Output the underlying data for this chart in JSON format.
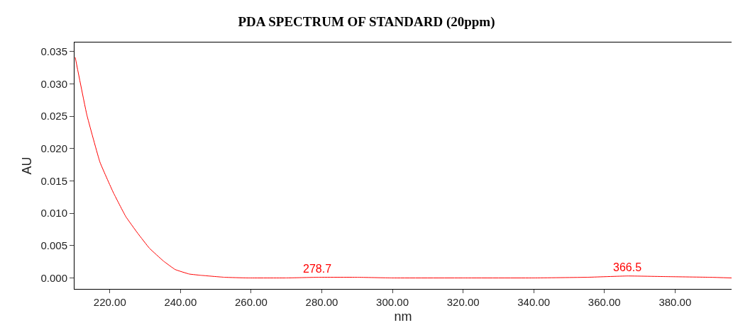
{
  "chart_data": {
    "type": "line",
    "title": "PDA SPECTRUM OF STANDARD (20ppm)",
    "xlabel": "nm",
    "ylabel": "AU",
    "x": [
      210.2,
      213.5,
      217.2,
      220.9,
      224.5,
      227.9,
      231.2,
      235.2,
      238.5,
      242.5,
      245.9,
      252.5,
      259,
      270,
      278.7,
      290,
      300,
      320,
      340,
      355,
      366.5,
      378,
      390,
      396
    ],
    "series": [
      {
        "color": "#ff0000",
        "values": [
          0.0341,
          0.0252,
          0.0179,
          0.0133,
          0.0095,
          0.0069,
          0.0046,
          0.0026,
          0.0013,
          0.0006,
          0.0004,
          0.0001,
          0.0,
          0.0,
          0.0001,
          0.0001,
          0.0,
          0.0,
          0.0,
          0.0001,
          0.0003,
          0.0002,
          0.0001,
          0.0
        ]
      }
    ],
    "annotations": [
      {
        "text": "278.7",
        "x": 278.7,
        "y": 0.0001
      },
      {
        "text": "366.5",
        "x": 366.5,
        "y": 0.0003
      }
    ],
    "xlim": [
      210,
      396
    ],
    "ylim": [
      -0.0017,
      0.0364
    ],
    "xticks": [
      {
        "value": 220,
        "label": "220.00"
      },
      {
        "value": 240,
        "label": "240.00"
      },
      {
        "value": 260,
        "label": "260.00"
      },
      {
        "value": 280,
        "label": "280.00"
      },
      {
        "value": 300,
        "label": "300.00"
      },
      {
        "value": 320,
        "label": "320.00"
      },
      {
        "value": 340,
        "label": "340.00"
      },
      {
        "value": 360,
        "label": "360.00"
      },
      {
        "value": 380,
        "label": "380.00"
      }
    ],
    "yticks": [
      {
        "value": 0,
        "label": "0.000"
      },
      {
        "value": 0.005,
        "label": "0.005"
      },
      {
        "value": 0.01,
        "label": "0.010"
      },
      {
        "value": 0.015,
        "label": "0.015"
      },
      {
        "value": 0.02,
        "label": "0.020"
      },
      {
        "value": 0.025,
        "label": "0.025"
      },
      {
        "value": 0.03,
        "label": "0.030"
      },
      {
        "value": 0.035,
        "label": "0.035"
      }
    ],
    "marker": "none",
    "line_style": "solid"
  }
}
